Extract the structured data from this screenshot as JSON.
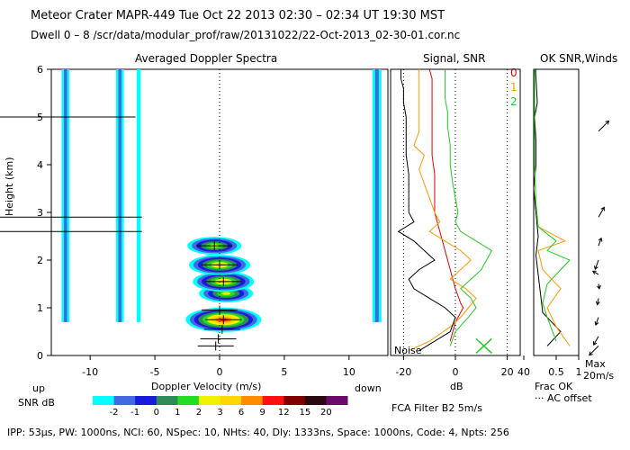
{
  "header": {
    "line1": "Meteor Crater   MAPR-449   Tue Oct 22 2013 02:30 – 02:34 UT 19:30 MST",
    "line2": "Dwell  0 –  8   /scr/data/modular_prof/raw/20131022/22-Oct-2013_02-30-01.cor.nc"
  },
  "colors": {
    "snr_scale": [
      "#00ffff",
      "#4169e1",
      "#1a1adc",
      "#2e8b57",
      "#22dd22",
      "#f0f000",
      "#ffd700",
      "#ff8c00",
      "#ff1010",
      "#800000",
      "#2a0a10",
      "#6a0a6a"
    ]
  },
  "footer": {
    "params": "IPP:  53µs,  PW: 1000ns,  NCI:  60,  NSpec: 10,  NHts: 40,  Dly: 1333ns,  Space: 1000ns,  Code: 4,  Npts: 256",
    "filter": "FCA Filter B2   5m/s"
  },
  "chart_data": [
    {
      "type": "heatmap",
      "title": "Averaged Doppler Spectra",
      "xlabel": "Doppler Velocity (m/s)",
      "ylabel": "Height (km)",
      "xlim": [
        -13,
        13
      ],
      "ylim": [
        0,
        6
      ],
      "xticks": [
        -10,
        -5,
        0,
        5,
        10
      ],
      "yticks": [
        0,
        1,
        2,
        3,
        4,
        5,
        6
      ],
      "x_left_label": "up",
      "x_right_label": "down",
      "colorbar": {
        "label": "SNR dB",
        "ticks": [
          "-2",
          "-1",
          "0",
          "1",
          "2",
          "3",
          "6",
          "9",
          "12",
          "15",
          "20"
        ]
      },
      "clutter_bands_ms": [
        [
          -12.2,
          -11.6
        ],
        [
          -8,
          -7.4
        ],
        [
          -6.4,
          -6.1
        ],
        [
          11.8,
          12.5
        ]
      ],
      "reflectivity_blobs": [
        {
          "height_km": 0.75,
          "velocity_ms": 0.3,
          "snr_level": "12"
        },
        {
          "height_km": 1.3,
          "velocity_ms": 0.5,
          "snr_level": "3"
        },
        {
          "height_km": 1.55,
          "velocity_ms": 0.3,
          "snr_level": "6"
        },
        {
          "height_km": 1.9,
          "velocity_ms": 0.0,
          "snr_level": "6"
        },
        {
          "height_km": 2.3,
          "velocity_ms": -0.4,
          "snr_level": "3"
        }
      ],
      "wind_markers": [
        {
          "height_km": 0.2,
          "velocity_ms": -0.3
        },
        {
          "height_km": 0.35,
          "velocity_ms": -0.1
        },
        {
          "height_km": 0.55,
          "velocity_ms": 0.2
        },
        {
          "height_km": 0.75,
          "velocity_ms": 0.3
        },
        {
          "height_km": 0.95,
          "velocity_ms": 0.0
        },
        {
          "height_km": 1.55,
          "velocity_ms": 0.3
        },
        {
          "height_km": 1.9,
          "velocity_ms": 0.0
        },
        {
          "height_km": 2.3,
          "velocity_ms": -0.4
        },
        {
          "height_km": 2.6,
          "velocity_ms": -13.0
        },
        {
          "height_km": 2.9,
          "velocity_ms": -13.0
        },
        {
          "height_km": 5.0,
          "velocity_ms": -13.0
        }
      ]
    },
    {
      "type": "line",
      "title": "Signal, SNR",
      "xlabel": "dB",
      "xlim": [
        -25,
        25
      ],
      "xticks": [
        -20,
        0,
        20,
        40
      ],
      "ylim": [
        0,
        6
      ],
      "noise_label": "Noise",
      "series": [
        {
          "name": "0",
          "color": "#e00000",
          "x": [
            -2,
            -1,
            0,
            2,
            3,
            2,
            1,
            0,
            -1,
            -2,
            -3,
            -4,
            -5,
            -6,
            -7,
            -8,
            -8,
            -8,
            -9,
            -9,
            -9,
            -9,
            -9,
            -9,
            -10
          ],
          "y": [
            0.3,
            0.5,
            0.7,
            0.9,
            1.0,
            1.1,
            1.25,
            1.4,
            1.6,
            1.8,
            2.0,
            2.2,
            2.4,
            2.6,
            2.8,
            3.0,
            3.4,
            3.8,
            4.2,
            4.6,
            5.0,
            5.3,
            5.6,
            5.8,
            6.0
          ]
        },
        {
          "name": "1",
          "color": "#ff9900",
          "x": [
            -18,
            -10,
            -2,
            2,
            5,
            8,
            4,
            -2,
            2,
            6,
            2,
            -4,
            -10,
            -6,
            -8,
            -10,
            -12,
            -14,
            -12,
            -16,
            -14,
            -14,
            -14,
            -14,
            -14
          ],
          "y": [
            0.1,
            0.3,
            0.6,
            0.8,
            1.0,
            1.2,
            1.4,
            1.6,
            1.8,
            2.0,
            2.2,
            2.4,
            2.6,
            2.8,
            3.0,
            3.3,
            3.6,
            3.9,
            4.2,
            4.4,
            4.7,
            5.0,
            5.4,
            5.7,
            6.0
          ]
        },
        {
          "name": "2",
          "color": "#22cc22",
          "x": [
            -2,
            0,
            5,
            8,
            6,
            2,
            6,
            10,
            12,
            14,
            8,
            2,
            0,
            1,
            0,
            -1,
            -2,
            -2,
            -3,
            -3,
            -4,
            -4,
            -4,
            -4,
            -4
          ],
          "y": [
            0.2,
            0.5,
            0.8,
            1.0,
            1.2,
            1.4,
            1.6,
            1.8,
            2.0,
            2.2,
            2.4,
            2.6,
            2.8,
            3.0,
            3.3,
            3.6,
            4.0,
            4.4,
            4.8,
            5.1,
            5.4,
            5.6,
            5.8,
            5.9,
            6.0
          ]
        },
        {
          "name": "noise",
          "color": "#000000",
          "x": [
            -14,
            -8,
            -2,
            0,
            -4,
            -10,
            -16,
            -18,
            -14,
            -8,
            -12,
            -16,
            -22,
            -16,
            -18,
            -18,
            -18,
            -19,
            -19,
            -19,
            -20,
            -20,
            -21,
            -21,
            -21
          ],
          "y": [
            0.1,
            0.3,
            0.5,
            0.8,
            1.0,
            1.2,
            1.4,
            1.6,
            1.8,
            2.0,
            2.2,
            2.4,
            2.6,
            2.8,
            3.0,
            3.4,
            3.8,
            4.2,
            4.6,
            5.0,
            5.3,
            5.6,
            5.8,
            5.9,
            6.0
          ]
        }
      ]
    },
    {
      "type": "line",
      "title": "OK SNR,Winds",
      "xlabel": "Frac OK",
      "x_sublabel": "AC offset",
      "xticks": [
        "0.5",
        "1"
      ],
      "xlim": [
        0,
        1
      ],
      "ylim": [
        0,
        6
      ],
      "legend": [
        "0",
        "1",
        "2"
      ],
      "wind_scale_label": "Max",
      "wind_scale_value": "20m/s",
      "series": [
        {
          "name": "frac_ok",
          "color": "#000000",
          "x": [
            0.3,
            0.6,
            0.2,
            0.15,
            0.1,
            0.05,
            0.1,
            0.05,
            0.0,
            0.05,
            0.05,
            0.02,
            0.08,
            0.04
          ],
          "y": [
            0.2,
            0.5,
            0.9,
            1.3,
            1.7,
            2.1,
            2.5,
            3.0,
            3.5,
            4.0,
            4.5,
            5.0,
            5.3,
            6.0
          ]
        },
        {
          "name": "snr_1",
          "color": "#ff9900",
          "x": [
            0.8,
            0.5,
            0.3,
            0.6,
            0.2,
            0.1,
            0.7,
            0.1,
            0.05,
            0.02,
            0.02,
            0.02
          ],
          "y": [
            0.2,
            0.6,
            1.0,
            1.4,
            1.8,
            2.2,
            2.4,
            2.7,
            3.2,
            4.0,
            5.0,
            6.0
          ]
        },
        {
          "name": "snr_2",
          "color": "#22cc22",
          "x": [
            0.5,
            0.3,
            0.2,
            0.3,
            0.8,
            0.3,
            0.5,
            0.1,
            0.05,
            0.02,
            0.02
          ],
          "y": [
            0.3,
            0.8,
            1.1,
            1.5,
            2.0,
            2.2,
            2.4,
            2.7,
            3.2,
            4.0,
            6.0
          ]
        }
      ],
      "wind_barbs": [
        {
          "height_km": 0.2,
          "dir_deg": 225,
          "speed_ms": 8
        },
        {
          "height_km": 0.4,
          "dir_deg": 210,
          "speed_ms": 6
        },
        {
          "height_km": 0.8,
          "dir_deg": 200,
          "speed_ms": 5
        },
        {
          "height_km": 1.2,
          "dir_deg": 190,
          "speed_ms": 4
        },
        {
          "height_km": 1.5,
          "dir_deg": 170,
          "speed_ms": 3
        },
        {
          "height_km": 1.7,
          "dir_deg": 300,
          "speed_ms": 4
        },
        {
          "height_km": 2.0,
          "dir_deg": 200,
          "speed_ms": 6
        },
        {
          "height_km": 2.3,
          "dir_deg": 20,
          "speed_ms": 5
        },
        {
          "height_km": 2.9,
          "dir_deg": 30,
          "speed_ms": 7
        },
        {
          "height_km": 4.7,
          "dir_deg": 45,
          "speed_ms": 9
        }
      ]
    }
  ]
}
